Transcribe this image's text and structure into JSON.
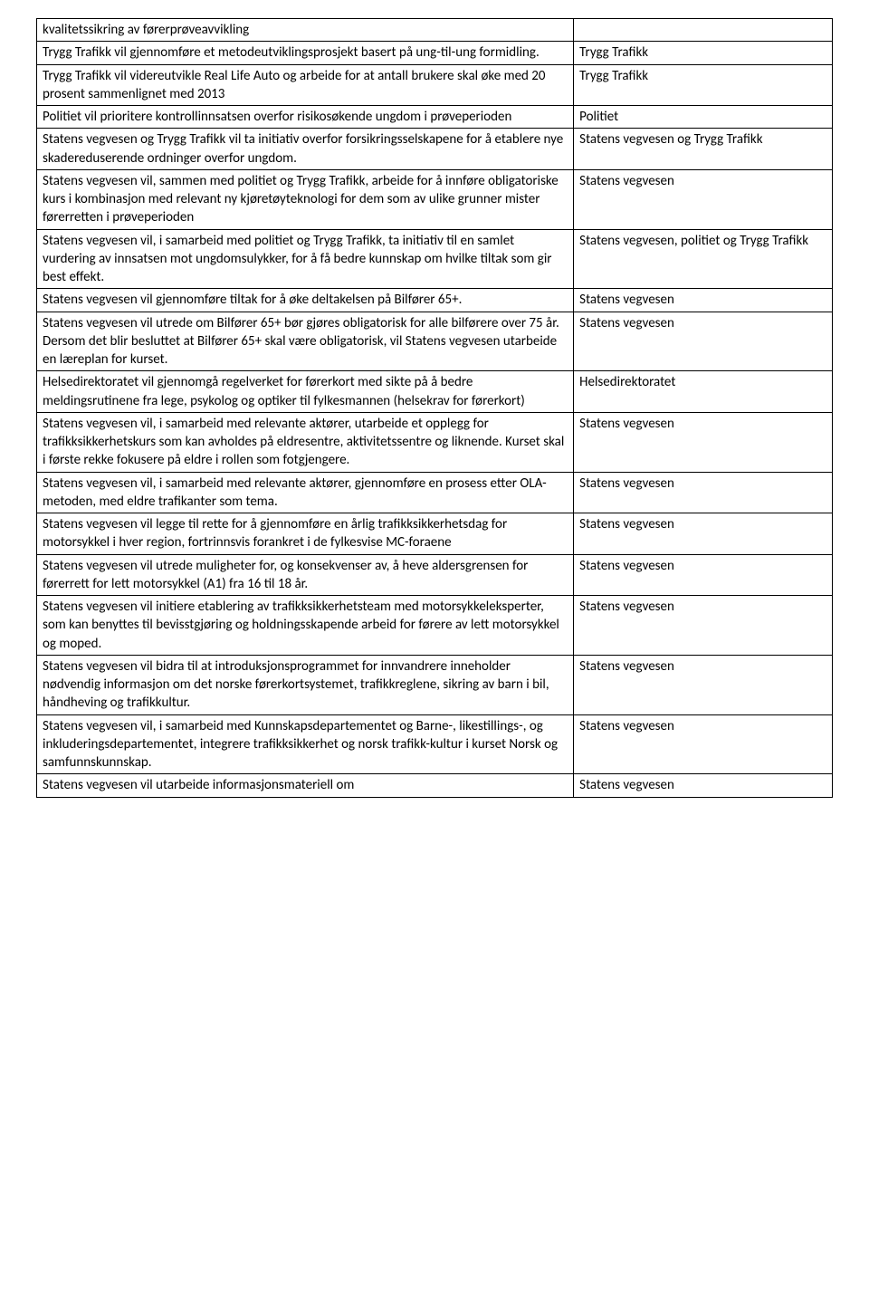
{
  "table": {
    "rows": [
      {
        "left": "kvalitetssikring av førerprøveavvikling",
        "right": ""
      },
      {
        "left": "Trygg Trafikk vil gjennomføre et metodeutviklingsprosjekt basert på ung-til-ung formidling.",
        "right": "Trygg Trafikk"
      },
      {
        "left": "Trygg Trafikk vil videreutvikle Real Life Auto og arbeide for at antall brukere skal øke med 20 prosent sammenlignet med 2013",
        "right": "Trygg Trafikk"
      },
      {
        "left": "Politiet vil prioritere kontrollinnsatsen overfor risikosøkende ungdom i prøveperioden",
        "right": "Politiet"
      },
      {
        "left": "Statens vegvesen og Trygg Trafikk vil ta initiativ overfor forsikringsselskapene for å etablere nye skadereduserende ordninger overfor ungdom.",
        "right": "Statens vegvesen og Trygg Trafikk"
      },
      {
        "left": "Statens vegvesen vil, sammen med politiet og Trygg Trafikk, arbeide for å innføre obligatoriske kurs i kombinasjon med relevant ny kjøretøyteknologi for dem som av ulike grunner mister førerretten i prøveperioden",
        "right": "Statens vegvesen"
      },
      {
        "left": "Statens vegvesen vil, i samarbeid med politiet og Trygg Trafikk, ta initiativ til en samlet vurdering av innsatsen mot ungdomsulykker, for å få bedre kunnskap om hvilke tiltak som gir best effekt.",
        "right": "Statens vegvesen, politiet og Trygg Trafikk"
      },
      {
        "left": "Statens vegvesen vil gjennomføre tiltak for å øke deltakelsen på Bilfører 65+.",
        "right": "Statens vegvesen"
      },
      {
        "left": "Statens vegvesen vil utrede om Bilfører 65+ bør gjøres obligatorisk for alle bilførere over 75 år. Dersom det blir besluttet at Bilfører 65+ skal være obligatorisk, vil Statens vegvesen utarbeide en læreplan for kurset.",
        "right": "Statens vegvesen"
      },
      {
        "left": "Helsedirektoratet vil gjennomgå regelverket for førerkort med sikte på å bedre meldingsrutinene fra lege, psykolog og optiker til fylkesmannen (helsekrav for førerkort)",
        "right": "Helsedirektoratet"
      },
      {
        "left": "Statens vegvesen vil, i samarbeid med relevante aktører, utarbeide et opplegg for trafikksikkerhetskurs som kan avholdes på eldresentre, aktivitetssentre og liknende. Kurset skal i første rekke fokusere på eldre i rollen som fotgjengere.",
        "right": "Statens vegvesen"
      },
      {
        "left": "Statens vegvesen vil, i samarbeid med relevante aktører, gjennomføre en prosess etter OLA-metoden, med eldre trafikanter som tema.",
        "right": "Statens vegvesen"
      },
      {
        "left": "Statens vegvesen vil legge til rette for å gjennomføre en årlig trafikksikkerhetsdag for motorsykkel i hver region, fortrinnsvis forankret i de fylkesvise MC-foraene",
        "right": "Statens vegvesen"
      },
      {
        "left": "Statens vegvesen vil utrede muligheter for, og konsekvenser av, å heve aldersgrensen for førerrett for lett motorsykkel (A1) fra 16 til 18 år.",
        "right": "Statens vegvesen"
      },
      {
        "left": "Statens vegvesen vil initiere etablering av trafikksikkerhetsteam med motorsykkeleksperter, som kan benyttes til bevisstgjøring og holdningsskapende arbeid for førere av lett motorsykkel og moped.",
        "right": "Statens vegvesen"
      },
      {
        "left": "Statens vegvesen vil bidra til at introduksjonsprogrammet for innvandrere inneholder nødvendig informasjon om det norske førerkortsystemet, trafikkreglene, sikring av barn i bil, håndheving og trafikkultur.",
        "right": "Statens vegvesen"
      },
      {
        "left": "Statens vegvesen vil, i samarbeid med Kunnskapsdepartementet og Barne-, likestillings-, og inkluderingsdepartementet, integrere trafikksikkerhet og norsk trafikk-kultur i kurset Norsk og samfunnskunnskap.",
        "right": "Statens vegvesen"
      },
      {
        "left": "Statens vegvesen vil utarbeide informasjonsmateriell om",
        "right": "Statens vegvesen"
      }
    ]
  }
}
